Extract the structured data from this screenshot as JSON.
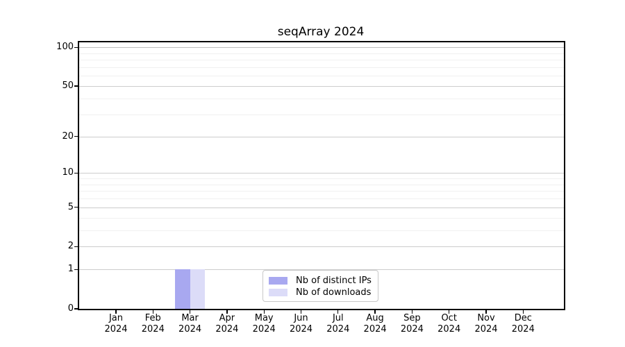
{
  "chart_data": {
    "type": "bar",
    "title": "seqArray 2024",
    "categories": [
      {
        "month": "Jan",
        "year": "2024"
      },
      {
        "month": "Feb",
        "year": "2024"
      },
      {
        "month": "Mar",
        "year": "2024"
      },
      {
        "month": "Apr",
        "year": "2024"
      },
      {
        "month": "May",
        "year": "2024"
      },
      {
        "month": "Jun",
        "year": "2024"
      },
      {
        "month": "Jul",
        "year": "2024"
      },
      {
        "month": "Aug",
        "year": "2024"
      },
      {
        "month": "Sep",
        "year": "2024"
      },
      {
        "month": "Oct",
        "year": "2024"
      },
      {
        "month": "Nov",
        "year": "2024"
      },
      {
        "month": "Dec",
        "year": "2024"
      }
    ],
    "series": [
      {
        "name": "Nb of distinct IPs",
        "color": "#a8a8f0",
        "values": [
          0,
          0,
          1,
          0,
          0,
          0,
          0,
          0,
          0,
          0,
          0,
          0
        ]
      },
      {
        "name": "Nb of downloads",
        "color": "#dcdcf8",
        "values": [
          0,
          0,
          1,
          0,
          0,
          0,
          0,
          0,
          0,
          0,
          0,
          0
        ]
      }
    ],
    "xlabel": "",
    "ylabel": "",
    "y_scale": "log10(1+v)",
    "y_major_ticks": [
      0,
      1,
      2,
      5,
      10,
      20,
      50,
      100
    ],
    "y_minor_gridlines": [
      3,
      4,
      6,
      7,
      8,
      9,
      30,
      40,
      60,
      70,
      80,
      90
    ],
    "ylim": [
      0,
      109
    ],
    "grid": "horizontal",
    "legend_position": "lower center"
  },
  "colors": {
    "major_grid": "#cccccc",
    "top_grid": "#bdbdbd",
    "minor_grid": "#f0f0f0",
    "spine": "#000000",
    "text": "#000000",
    "legend_border": "#c8c8c8",
    "background": "#ffffff"
  }
}
